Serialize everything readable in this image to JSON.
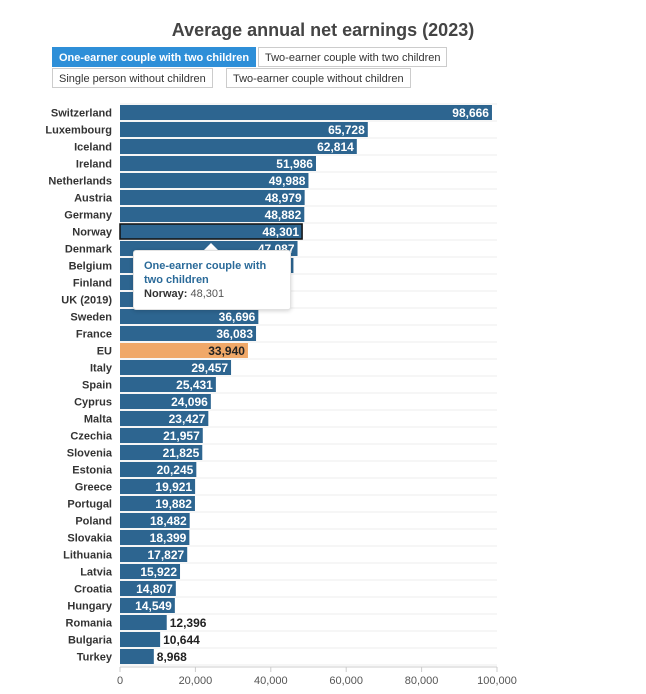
{
  "chart_data": {
    "type": "bar",
    "orientation": "horizontal",
    "title": "Average annual net earnings (2023)",
    "categories": [
      "Switzerland",
      "Luxembourg",
      "Iceland",
      "Ireland",
      "Netherlands",
      "Austria",
      "Germany",
      "Norway",
      "Denmark",
      "Belgium",
      "Finland",
      "UK (2019)",
      "Sweden",
      "France",
      "EU",
      "Italy",
      "Spain",
      "Cyprus",
      "Malta",
      "Czechia",
      "Slovenia",
      "Estonia",
      "Greece",
      "Portugal",
      "Poland",
      "Slovakia",
      "Lithuania",
      "Latvia",
      "Croatia",
      "Hungary",
      "Romania",
      "Bulgaria",
      "Turkey"
    ],
    "values": [
      98666,
      65728,
      62814,
      51986,
      49988,
      48979,
      48882,
      48301,
      47087,
      46000,
      44000,
      43000,
      36696,
      36083,
      33940,
      29457,
      25431,
      24096,
      23427,
      21957,
      21825,
      20245,
      19921,
      19882,
      18482,
      18399,
      17827,
      15922,
      14807,
      14549,
      12396,
      10644,
      8968
    ],
    "value_labels": [
      "98,666",
      "65,728",
      "62,814",
      "51,986",
      "49,988",
      "48,979",
      "48,882",
      "48,301",
      "47,087",
      "",
      "",
      "",
      "36,696",
      "36,083",
      "33,940",
      "29,457",
      "25,431",
      "24,096",
      "23,427",
      "21,957",
      "21,825",
      "20,245",
      "19,921",
      "19,882",
      "18,482",
      "18,399",
      "17,827",
      "15,922",
      "14,807",
      "14,549",
      "12,396",
      "10,644",
      "8,968"
    ],
    "xlim": [
      0,
      100000
    ],
    "xticks": [
      0,
      20000,
      40000,
      60000,
      80000,
      100000
    ],
    "xtick_labels": [
      "0",
      "20,000",
      "40,000",
      "60,000",
      "80,000",
      "100,000"
    ],
    "colors": {
      "bar": "#2d6590",
      "highlight": "#f0a868",
      "selected_border": "#111111"
    },
    "highlight_category": "EU",
    "selected_category": "Norway",
    "grid": true
  },
  "buttons": [
    {
      "label": "One-earner couple with two children",
      "active": true
    },
    {
      "label": "Two-earner couple with two children",
      "active": false
    },
    {
      "label": "Single person without children",
      "active": false
    },
    {
      "label": "Two-earner couple without children",
      "active": false
    }
  ],
  "tooltip": {
    "series": "One-earner couple with two children",
    "category": "Norway:",
    "value": "48,301"
  }
}
